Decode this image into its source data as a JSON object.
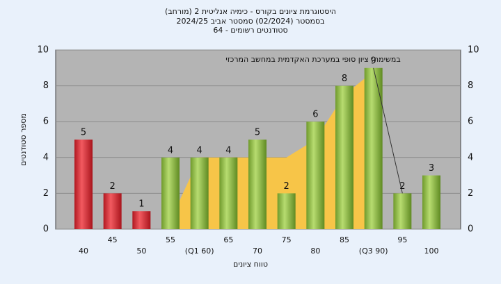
{
  "chart_data": {
    "type": "bar",
    "title": "(היסטוגרמת ציונים בקורס - כימיה אנליטית 2 (מורחב",
    "subtitle": "בסמסטר  (02/2024)  סמסטר אביב 2024/25",
    "subtitle2": "סטודנטים רשומים - 64",
    "annotation": "במשימה: ציון סופי במערכת האקדמית במחשב המרכזי",
    "x_label": "טווח ציונים",
    "y_label": "מספר סטודנטים",
    "categories": [
      "40",
      "45",
      "50",
      "55",
      "(Q1 60)",
      "65",
      "70",
      "75",
      "80",
      "85",
      "(Q3 90)",
      "95",
      "100"
    ],
    "values": [
      5,
      2,
      1,
      4,
      4,
      4,
      5,
      2,
      6,
      8,
      9,
      2,
      3
    ],
    "colors": [
      "#d9303a",
      "#d9303a",
      "#d9303a",
      "#8fbc45",
      "#8fbc45",
      "#8fbc45",
      "#8fbc45",
      "#8fbc45",
      "#8fbc45",
      "#8fbc45",
      "#8fbc45",
      "#8fbc45",
      "#8fbc45"
    ],
    "area": {
      "color": "#f7c548",
      "values": [
        null,
        null,
        null,
        0.5,
        4,
        4,
        4,
        4,
        5,
        7.5,
        8.8,
        null,
        null
      ]
    },
    "line": {
      "color": "#333333",
      "values": [
        null,
        null,
        null,
        null,
        null,
        null,
        null,
        null,
        null,
        null,
        9,
        2,
        null
      ]
    },
    "ylim": [
      0,
      10
    ],
    "yticks": [
      0,
      2,
      4,
      6,
      8,
      10
    ],
    "grid": true
  }
}
